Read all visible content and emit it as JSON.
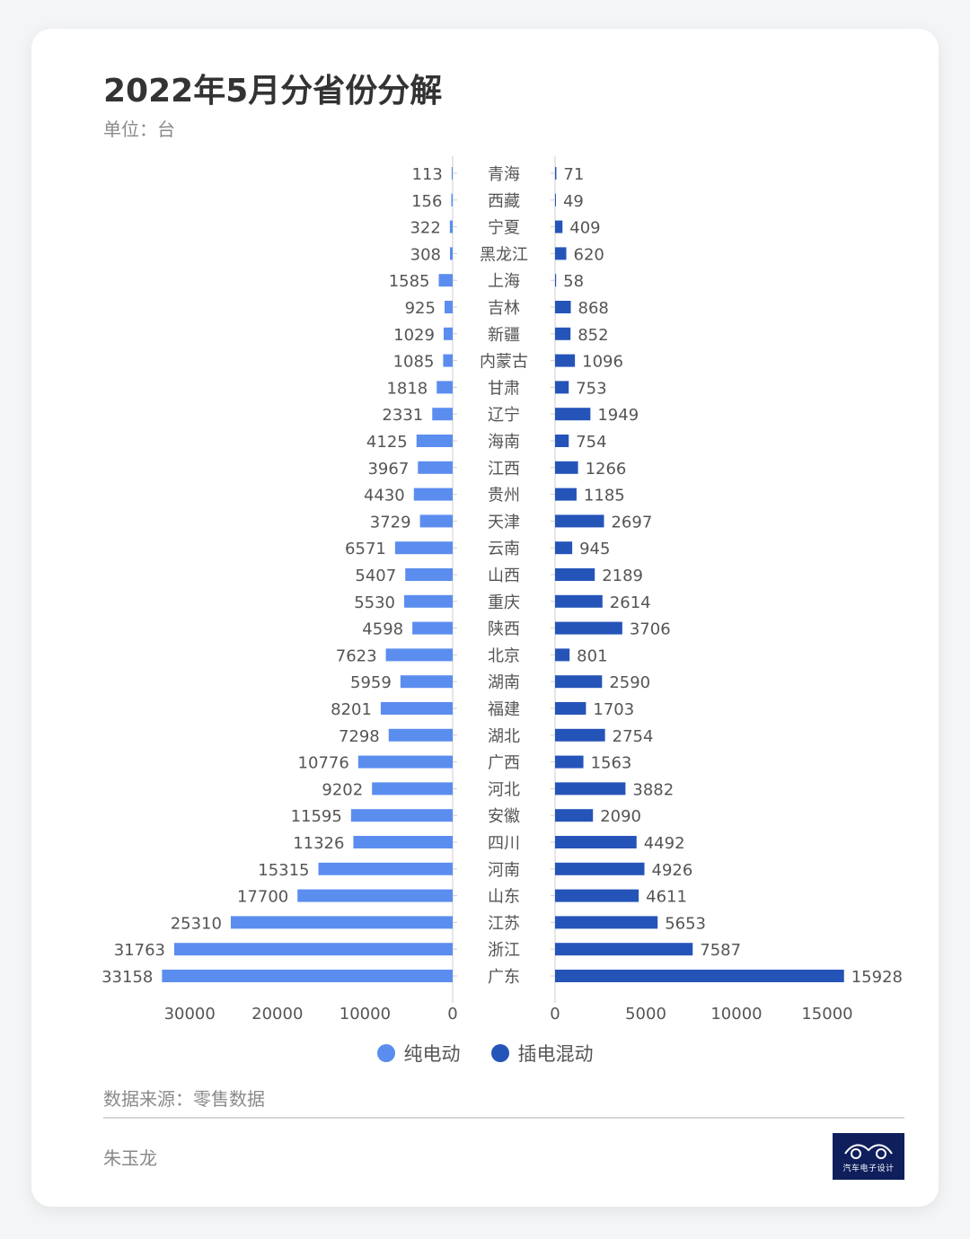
{
  "title": "2022年5月分省份分解",
  "unit": "单位：台",
  "source": "数据来源：零售数据",
  "author": "朱玉龙",
  "logo_text": "汽车电子设计",
  "colors": {
    "bev": "#5b8def",
    "phev": "#2554b9",
    "axis": "#999999",
    "text": "#555555"
  },
  "chart_data": {
    "type": "bar",
    "orientation": "horizontal-butterfly",
    "categories": [
      "青海",
      "西藏",
      "宁夏",
      "黑龙江",
      "上海",
      "吉林",
      "新疆",
      "内蒙古",
      "甘肃",
      "辽宁",
      "海南",
      "江西",
      "贵州",
      "天津",
      "云南",
      "山西",
      "重庆",
      "陕西",
      "北京",
      "湖南",
      "福建",
      "湖北",
      "广西",
      "河北",
      "安徽",
      "四川",
      "河南",
      "山东",
      "江苏",
      "浙江",
      "广东"
    ],
    "series": [
      {
        "name": "纯电动",
        "values": [
          113,
          156,
          322,
          308,
          1585,
          925,
          1029,
          1085,
          1818,
          2331,
          4125,
          3967,
          4430,
          3729,
          6571,
          5407,
          5530,
          4598,
          7623,
          5959,
          8201,
          7298,
          10776,
          9202,
          11595,
          11326,
          15315,
          17700,
          25310,
          31763,
          33158
        ]
      },
      {
        "name": "插电混动",
        "values": [
          71,
          49,
          409,
          620,
          58,
          868,
          852,
          1096,
          753,
          1949,
          754,
          1266,
          1185,
          2697,
          945,
          2189,
          2614,
          3706,
          801,
          2590,
          1703,
          2754,
          1563,
          3882,
          2090,
          4492,
          4926,
          4611,
          5653,
          7587,
          15928
        ]
      }
    ],
    "left_axis": {
      "ticks": [
        30000,
        20000,
        10000,
        0
      ],
      "lim": [
        0,
        33158
      ]
    },
    "right_axis": {
      "ticks": [
        0,
        5000,
        10000,
        15000
      ],
      "lim": [
        0,
        15928
      ]
    },
    "legend_position": "bottom-center",
    "grid": false
  }
}
